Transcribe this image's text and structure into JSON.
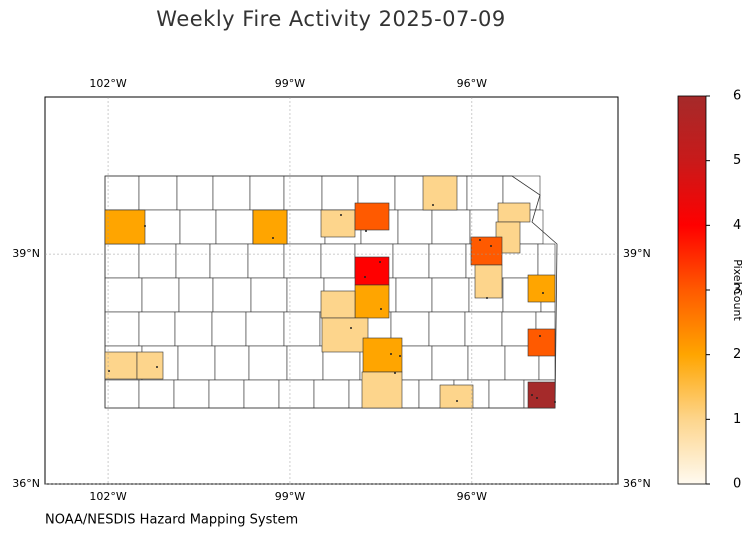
{
  "chart_data": {
    "type": "choropleth",
    "title": "Weekly Fire Activity 2025-07-09",
    "source": "NOAA/NESDIS Hazard Mapping System",
    "xlim": [
      -103.04,
      -93.59
    ],
    "ylim": [
      36,
      41.05
    ],
    "xticks": [
      {
        "value": -102,
        "label": "102°W"
      },
      {
        "value": -99,
        "label": "99°W"
      },
      {
        "value": -96,
        "label": "96°W"
      }
    ],
    "yticks": [
      {
        "value": 39,
        "label": "39°N"
      },
      {
        "value": 36,
        "label": "36°N"
      }
    ],
    "grid": true,
    "colorbar": {
      "label": "Pixel Count",
      "clim": [
        0,
        6
      ],
      "ticks": [
        0,
        1,
        2,
        3,
        4,
        5,
        6
      ],
      "colormap": [
        "#fffaf0",
        "#fdd58c",
        "#ffa500",
        "#ff5a00",
        "#ff0000",
        "#c81a1a",
        "#a52a2a"
      ]
    },
    "values": [
      2,
      2,
      1,
      3,
      1,
      1,
      1,
      3,
      1,
      4,
      2,
      1,
      1,
      2,
      3,
      2,
      1,
      1,
      1,
      1,
      6
    ]
  }
}
